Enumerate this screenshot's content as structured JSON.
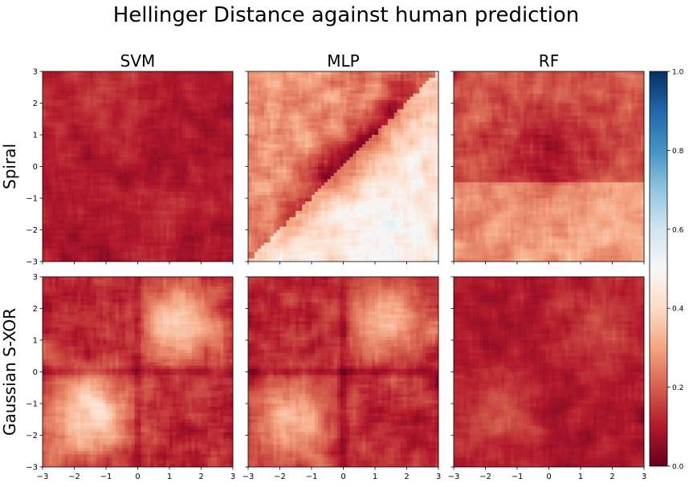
{
  "figure": {
    "title": "Hellinger Distance against human prediction"
  },
  "colors": {
    "colormap": "RdBu",
    "low": "#67001f",
    "mid": "#f7f7f7",
    "high": "#053061"
  },
  "chart_data": {
    "type": "heatmap",
    "title": "Hellinger Distance against human prediction",
    "columns": [
      "SVM",
      "MLP",
      "RF"
    ],
    "rows": [
      "Spiral",
      "Gaussian S-XOR"
    ],
    "xlim": [
      -3,
      3
    ],
    "ylim": [
      -3,
      3
    ],
    "x_ticks": [
      "−3",
      "−2",
      "−1",
      "0",
      "1",
      "2",
      "3"
    ],
    "y_ticks": [
      "−3",
      "−2",
      "−1",
      "0",
      "1",
      "2",
      "3"
    ],
    "grid_resolution": 60,
    "colorbar": {
      "range": [
        0.0,
        1.0
      ],
      "ticks": [
        "0.0",
        "0.2",
        "0.4",
        "0.6",
        "0.8",
        "1.0"
      ],
      "placement": "right"
    },
    "panels": [
      {
        "row": "Spiral",
        "column": "SVM",
        "approx_range": [
          0.0,
          0.3
        ],
        "description": "mostly dark red (≈0.05–0.15) across the whole domain"
      },
      {
        "row": "Spiral",
        "column": "MLP",
        "approx_range": [
          0.0,
          0.55
        ],
        "description": "≈0.3 in upper-left, dark red band along the diagonal, ≈0.45–0.55 in lower-right"
      },
      {
        "row": "Spiral",
        "column": "RF",
        "approx_range": [
          0.0,
          0.35
        ],
        "description": "≈0.2 upper-left, dark band through center, ≈0.3 in lower-right"
      },
      {
        "row": "Gaussian S-XOR",
        "column": "SVM",
        "approx_range": [
          0.0,
          0.45
        ],
        "description": "bright blobs (≈0.35–0.45) in upper-right and lower-left quadrants, dark cross at x=0 and y=0"
      },
      {
        "row": "Gaussian S-XOR",
        "column": "MLP",
        "approx_range": [
          0.0,
          0.4
        ],
        "description": "bright blobs in upper-right and lower-left quadrants, dark cross at x=0 and y=0"
      },
      {
        "row": "Gaussian S-XOR",
        "column": "RF",
        "approx_range": [
          0.0,
          0.3
        ],
        "description": "mostly dark with faint lighter patches in upper-right and lower-left"
      }
    ]
  }
}
